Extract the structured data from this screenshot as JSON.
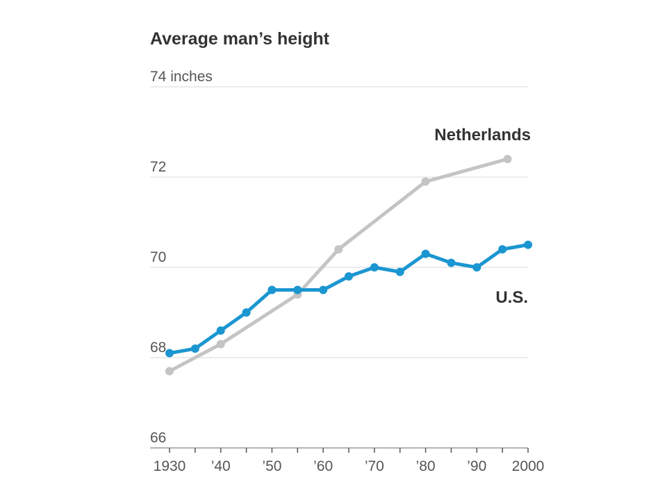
{
  "chart_data": {
    "type": "line",
    "title": "Average man’s height",
    "ylabel": "",
    "xlabel": "",
    "ylim": [
      66,
      74
    ],
    "xlim": [
      1930,
      2000
    ],
    "y_ticks": [
      {
        "value": 74,
        "label": "74 inches"
      },
      {
        "value": 72,
        "label": "72"
      },
      {
        "value": 70,
        "label": "70"
      },
      {
        "value": 68,
        "label": "68"
      },
      {
        "value": 66,
        "label": "66"
      }
    ],
    "x_ticks": [
      {
        "value": 1930,
        "label": "1930"
      },
      {
        "value": 1940,
        "label": "’40"
      },
      {
        "value": 1950,
        "label": "’50"
      },
      {
        "value": 1960,
        "label": "’60"
      },
      {
        "value": 1970,
        "label": "’70"
      },
      {
        "value": 1980,
        "label": "’80"
      },
      {
        "value": 1990,
        "label": "’90"
      },
      {
        "value": 2000,
        "label": "2000"
      }
    ],
    "grid": true,
    "series": [
      {
        "name": "Netherlands",
        "color": "#c4c4c4",
        "x": [
          1930,
          1940,
          1955,
          1963,
          1980,
          1996
        ],
        "y": [
          67.7,
          68.3,
          69.4,
          70.4,
          71.9,
          72.4
        ]
      },
      {
        "name": "U.S.",
        "color": "#1b96d1",
        "x": [
          1930,
          1935,
          1940,
          1945,
          1950,
          1955,
          1960,
          1965,
          1970,
          1975,
          1980,
          1985,
          1990,
          1995,
          2000
        ],
        "y": [
          68.1,
          68.2,
          68.6,
          69.0,
          69.5,
          69.5,
          69.5,
          69.8,
          70.0,
          69.9,
          70.3,
          70.1,
          70.0,
          70.4,
          70.5
        ]
      }
    ]
  }
}
